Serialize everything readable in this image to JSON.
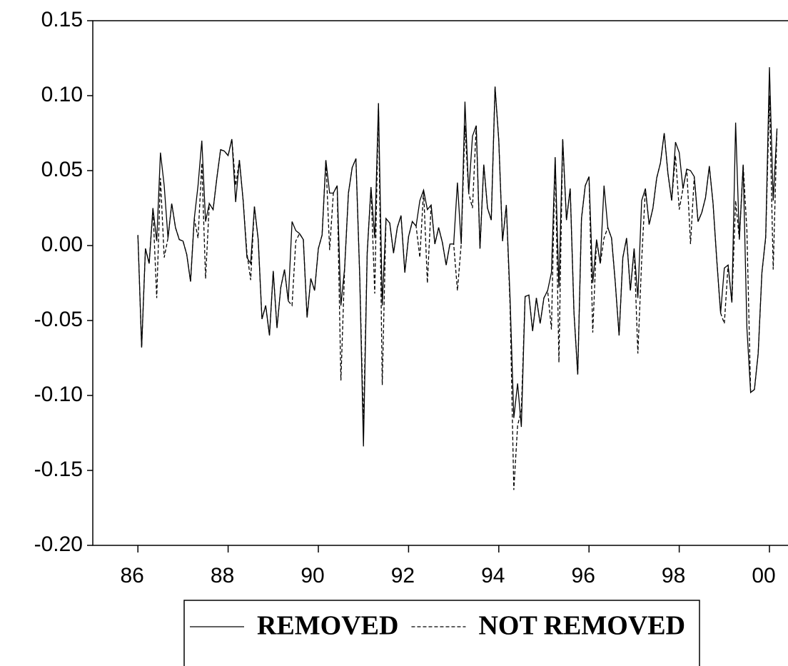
{
  "chart_data": {
    "type": "line",
    "x": [
      1986,
      1986.083,
      1986.167,
      1986.25,
      1986.333,
      1986.417,
      1986.5,
      1986.583,
      1986.667,
      1986.75,
      1986.833,
      1986.917,
      1987,
      1987.083,
      1987.167,
      1987.25,
      1987.333,
      1987.417,
      1987.5,
      1987.583,
      1987.667,
      1987.75,
      1987.833,
      1987.917,
      1988,
      1988.083,
      1988.167,
      1988.25,
      1988.333,
      1988.417,
      1988.5,
      1988.583,
      1988.667,
      1988.75,
      1988.833,
      1988.917,
      1989,
      1989.083,
      1989.167,
      1989.25,
      1989.333,
      1989.417,
      1989.5,
      1989.583,
      1989.667,
      1989.75,
      1989.833,
      1989.917,
      1990,
      1990.083,
      1990.167,
      1990.25,
      1990.333,
      1990.417,
      1990.5,
      1990.583,
      1990.667,
      1990.75,
      1990.833,
      1990.917,
      1991,
      1991.083,
      1991.167,
      1991.25,
      1991.333,
      1991.417,
      1991.5,
      1991.583,
      1991.667,
      1991.75,
      1991.833,
      1991.917,
      1992,
      1992.083,
      1992.167,
      1992.25,
      1992.333,
      1992.417,
      1992.5,
      1992.583,
      1992.667,
      1992.75,
      1992.833,
      1992.917,
      1993,
      1993.083,
      1993.167,
      1993.25,
      1993.333,
      1993.417,
      1993.5,
      1993.583,
      1993.667,
      1993.75,
      1993.833,
      1993.917,
      1994,
      1994.083,
      1994.167,
      1994.25,
      1994.333,
      1994.417,
      1994.5,
      1994.583,
      1994.667,
      1994.75,
      1994.833,
      1994.917,
      1995,
      1995.083,
      1995.167,
      1995.25,
      1995.333,
      1995.417,
      1995.5,
      1995.583,
      1995.667,
      1995.75,
      1995.833,
      1995.917,
      1996,
      1996.083,
      1996.167,
      1996.25,
      1996.333,
      1996.417,
      1996.5,
      1996.583,
      1996.667,
      1996.75,
      1996.833,
      1996.917,
      1997,
      1997.083,
      1997.167,
      1997.25,
      1997.333,
      1997.417,
      1997.5,
      1997.583,
      1997.667,
      1997.75,
      1997.833,
      1997.917,
      1998,
      1998.083,
      1998.167,
      1998.25,
      1998.333,
      1998.417,
      1998.5,
      1998.583,
      1998.667,
      1998.75,
      1998.833,
      1998.917,
      1999,
      1999.083,
      1999.167,
      1999.25,
      1999.333,
      1999.417,
      1999.5,
      1999.583,
      1999.667,
      1999.75,
      1999.833,
      1999.917,
      2000,
      2000.083,
      2000.167
    ],
    "series": [
      {
        "name": "REMOVED",
        "color": "#000000",
        "dash": "none",
        "values": [
          0.007,
          -0.068,
          -0.002,
          -0.012,
          0.025,
          0.003,
          0.062,
          0.04,
          0.005,
          0.028,
          0.012,
          0.004,
          0.003,
          -0.006,
          -0.024,
          0.018,
          0.04,
          0.07,
          0.016,
          0.028,
          0.024,
          0.045,
          0.064,
          0.063,
          0.06,
          0.071,
          0.029,
          0.057,
          0.03,
          -0.008,
          -0.012,
          0.026,
          0.004,
          -0.049,
          -0.04,
          -0.06,
          -0.017,
          -0.055,
          -0.028,
          -0.016,
          -0.037,
          0.016,
          0.01,
          0.008,
          0.004,
          -0.048,
          -0.022,
          -0.03,
          -0.002,
          0.007,
          0.057,
          0.035,
          0.035,
          0.04,
          -0.04,
          -0.015,
          0.035,
          0.052,
          0.058,
          -0.02,
          -0.134,
          -0.005,
          0.039,
          0.005,
          0.095,
          -0.04,
          0.018,
          0.015,
          -0.005,
          0.012,
          0.02,
          -0.018,
          0.006,
          0.016,
          0.013,
          0.03,
          0.037,
          0.024,
          0.027,
          0.001,
          0.012,
          0.002,
          -0.013,
          0.001,
          0.001,
          0.042,
          0.001,
          0.096,
          0.035,
          0.073,
          0.08,
          -0.002,
          0.054,
          0.025,
          0.017,
          0.106,
          0.07,
          0.003,
          0.027,
          -0.035,
          -0.115,
          -0.092,
          -0.121,
          -0.034,
          -0.033,
          -0.057,
          -0.035,
          -0.052,
          -0.035,
          -0.03,
          -0.018,
          0.059,
          -0.028,
          0.071,
          0.017,
          0.038,
          -0.045,
          -0.086,
          0.018,
          0.04,
          0.046,
          -0.025,
          0.004,
          -0.012,
          0.04,
          0.012,
          0.005,
          -0.025,
          -0.06,
          -0.008,
          0.005,
          -0.03,
          -0.002,
          -0.035,
          0.03,
          0.038,
          0.014,
          0.025,
          0.045,
          0.055,
          0.075,
          0.048,
          0.03,
          0.069,
          0.062,
          0.038,
          0.051,
          0.05,
          0.046,
          0.016,
          0.022,
          0.032,
          0.053,
          0.028,
          -0.01,
          -0.045,
          -0.015,
          -0.013,
          -0.038,
          0.082,
          0.004,
          0.054,
          -0.055,
          -0.098,
          -0.096,
          -0.072,
          -0.018,
          0.006,
          0.119,
          0.03,
          0.078
        ]
      },
      {
        "name": "NOT REMOVED",
        "color": "#000000",
        "dash": "dashed",
        "values": [
          0.007,
          -0.068,
          -0.002,
          -0.012,
          0.025,
          -0.035,
          0.045,
          -0.008,
          0.005,
          0.028,
          0.012,
          0.004,
          0.003,
          -0.006,
          -0.024,
          0.018,
          0.005,
          0.055,
          -0.022,
          0.028,
          0.024,
          0.045,
          0.064,
          0.063,
          0.06,
          0.071,
          0.04,
          0.057,
          0.03,
          -0.005,
          -0.023,
          0.026,
          0.004,
          -0.049,
          -0.04,
          -0.06,
          -0.017,
          -0.055,
          -0.028,
          -0.016,
          -0.037,
          -0.04,
          0.003,
          0.008,
          0.004,
          -0.048,
          -0.022,
          -0.03,
          -0.002,
          0.007,
          0.057,
          -0.003,
          0.035,
          0.04,
          -0.09,
          -0.015,
          0.035,
          0.052,
          0.058,
          -0.02,
          -0.12,
          -0.005,
          0.039,
          -0.032,
          0.095,
          -0.093,
          0.018,
          0.015,
          -0.005,
          0.012,
          0.02,
          -0.018,
          0.006,
          0.016,
          0.013,
          -0.008,
          0.037,
          -0.025,
          0.027,
          0.001,
          0.012,
          0.002,
          -0.013,
          0.001,
          0.001,
          -0.03,
          0.001,
          0.08,
          0.035,
          0.025,
          0.08,
          -0.002,
          0.054,
          0.025,
          0.017,
          0.106,
          0.07,
          0.003,
          0.027,
          -0.04,
          -0.163,
          -0.12,
          -0.11,
          -0.034,
          -0.033,
          -0.057,
          -0.035,
          -0.052,
          -0.035,
          -0.03,
          -0.056,
          0.059,
          -0.078,
          0.071,
          0.017,
          0.038,
          -0.045,
          -0.086,
          0.018,
          0.04,
          0.046,
          -0.058,
          0.004,
          -0.012,
          0.005,
          0.012,
          0.005,
          -0.025,
          -0.06,
          -0.008,
          0.005,
          -0.03,
          -0.002,
          -0.072,
          -0.01,
          0.038,
          0.014,
          0.025,
          0.045,
          0.055,
          0.075,
          0.048,
          0.03,
          0.06,
          0.024,
          0.038,
          0.051,
          0.001,
          0.046,
          0.016,
          0.022,
          0.032,
          0.053,
          0.028,
          -0.01,
          -0.045,
          -0.052,
          -0.013,
          -0.038,
          0.03,
          0.004,
          0.054,
          0.01,
          -0.098,
          -0.096,
          -0.072,
          -0.018,
          0.005,
          0.1,
          -0.016,
          0.078
        ]
      }
    ],
    "xlim": [
      1985,
      2000.4
    ],
    "xticks": [
      {
        "value": 1986,
        "label": "86"
      },
      {
        "value": 1988,
        "label": "88"
      },
      {
        "value": 1990,
        "label": "90"
      },
      {
        "value": 1992,
        "label": "92"
      },
      {
        "value": 1994,
        "label": "94"
      },
      {
        "value": 1996,
        "label": "96"
      },
      {
        "value": 1998,
        "label": "98"
      },
      {
        "value": 2000,
        "label": "00"
      }
    ],
    "ylim": [
      -0.2,
      0.15
    ],
    "yticks": [
      {
        "value": -0.2,
        "label": "-0.20"
      },
      -0.15,
      {
        "value": -0.1,
        "label": "-0.10"
      },
      -0.05,
      {
        "value": 0,
        "label": "0.00"
      },
      0.05,
      {
        "value": 0.1,
        "label": "0.10"
      },
      0.15
    ],
    "legend": "bottom"
  }
}
